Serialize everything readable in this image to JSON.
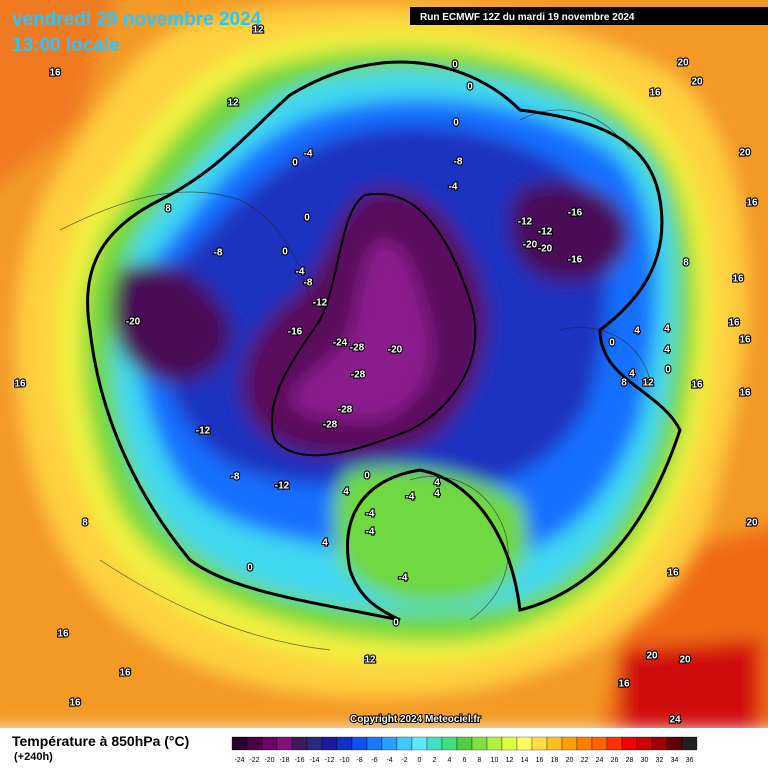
{
  "header": {
    "date": "vendredi 29 novembre 2024",
    "time": "13:00 locale",
    "run": "Run ECMWF 12Z du mardi 19 novembre 2024"
  },
  "copyright": "Copyright 2024 Meteociel.fr",
  "legend": {
    "title": "Température à 850hPa (°C)",
    "lead": "(+240h)",
    "ticks": [
      -24,
      -22,
      -20,
      -18,
      -16,
      -14,
      -12,
      -10,
      -8,
      -6,
      -4,
      -2,
      0,
      2,
      4,
      6,
      8,
      10,
      12,
      14,
      16,
      18,
      20,
      22,
      24,
      26,
      28,
      30,
      32,
      34,
      36
    ],
    "colors": [
      "#2a0030",
      "#4a0048",
      "#6a0068",
      "#84107c",
      "#3c1a5c",
      "#2a2a7c",
      "#1a1aa0",
      "#1030c8",
      "#1050f0",
      "#1878ff",
      "#28a0ff",
      "#40c8ff",
      "#60e8ff",
      "#40e0c0",
      "#40e080",
      "#50d040",
      "#80e040",
      "#b0f040",
      "#e0ff40",
      "#ffff60",
      "#ffe040",
      "#ffc020",
      "#ffa000",
      "#ff8000",
      "#ff6000",
      "#ff3000",
      "#f00000",
      "#d00000",
      "#a00000",
      "#600000",
      "#202020"
    ]
  },
  "map_labels": [
    "16",
    "12",
    "12",
    "20",
    "20",
    "16",
    "20",
    "16",
    "8",
    "16",
    "16",
    "16",
    "16",
    "16",
    "20",
    "16",
    "20",
    "20",
    "16",
    "24",
    "16",
    "16",
    "16",
    "16",
    "8",
    "4",
    "0",
    "-8",
    "-12",
    "-20",
    "-8",
    "-16",
    "-12",
    "-24",
    "-28",
    "-20",
    "-28",
    "-28",
    "-28",
    "-12",
    "-16",
    "-12",
    "-20",
    "-20",
    "-16",
    "-8",
    "-4",
    "0",
    "0",
    "0",
    "0",
    "-4",
    "0",
    "0",
    "-4",
    "-8",
    "0",
    "4",
    "-4",
    "4",
    "4",
    "-4",
    "-4",
    "-4",
    "0",
    "12",
    "4",
    "4",
    "0",
    "4",
    "8",
    "12",
    "4",
    "0",
    "8",
    "-12"
  ]
}
